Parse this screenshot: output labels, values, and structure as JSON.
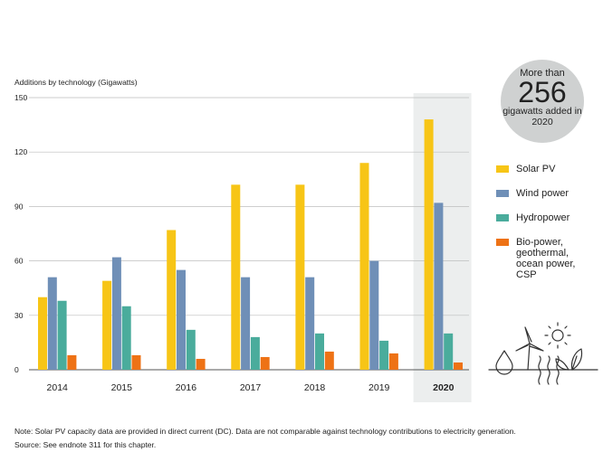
{
  "chart_data": {
    "type": "bar",
    "ylabel": "Additions by technology (Gigawatts)",
    "ylim": [
      0,
      150
    ],
    "yticks": [
      "0",
      "30",
      "60",
      "90",
      "120",
      "150"
    ],
    "ytick_values": [
      0,
      30,
      60,
      90,
      120,
      150
    ],
    "categories": [
      "2014",
      "2015",
      "2016",
      "2017",
      "2018",
      "2019",
      "2020"
    ],
    "highlight_category": "2020",
    "grid": true,
    "series": [
      {
        "name": "Solar PV",
        "color": "#f7c516",
        "values": [
          40,
          49,
          77,
          102,
          102,
          114,
          138
        ]
      },
      {
        "name": "Wind power",
        "color": "#6f8fb7",
        "values": [
          51,
          62,
          55,
          51,
          51,
          60,
          92
        ]
      },
      {
        "name": "Hydropower",
        "color": "#4aac9c",
        "values": [
          38,
          35,
          22,
          18,
          20,
          16,
          20
        ]
      },
      {
        "name": "Bio-power, geothermal, ocean power, CSP",
        "color": "#ee7215",
        "values": [
          8,
          8,
          6,
          7,
          10,
          9,
          4
        ]
      }
    ]
  },
  "legend": {
    "items": [
      {
        "label": "Solar PV",
        "color": "#f7c516"
      },
      {
        "label": "Wind power",
        "color": "#6f8fb7"
      },
      {
        "label": "Hydropower",
        "color": "#4aac9c"
      },
      {
        "label": "Bio-power, geothermal, ocean power, CSP",
        "color": "#ee7215"
      }
    ]
  },
  "callout": {
    "line1": "More than",
    "number": "256",
    "line2": "gigawatts added in 2020"
  },
  "footnote": {
    "note": "Note: Solar PV capacity data are provided in direct current (DC). Data are not comparable against technology contributions to electricity generation.",
    "source": "Source: See endnote 311 for this chapter."
  },
  "icons": [
    "water-drop-icon",
    "wind-turbine-icon",
    "sun-icon",
    "heat-waves-icon",
    "leaf-icon"
  ]
}
